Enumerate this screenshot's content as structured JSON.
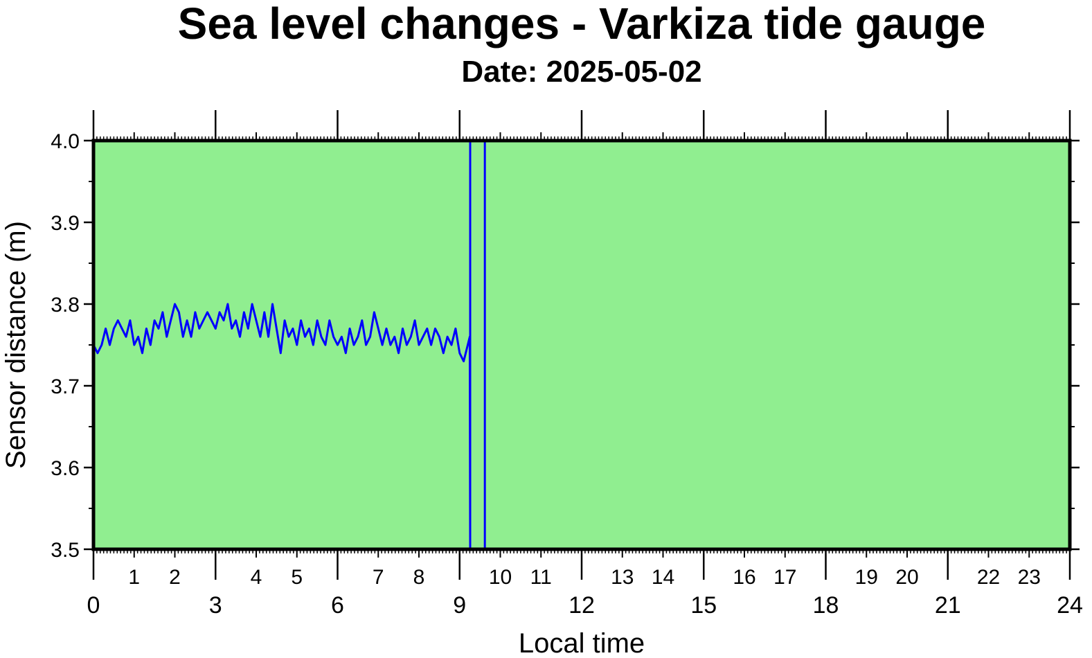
{
  "chart_data": {
    "type": "line",
    "title": "Sea level changes - Varkiza tide gauge",
    "subtitle": "Date: 2025-05-02",
    "xlabel": "Local time",
    "ylabel": "Sensor distance (m)",
    "xlim": [
      0,
      24
    ],
    "ylim": [
      3.5,
      4.0
    ],
    "x_major_ticks": [
      0,
      3,
      6,
      9,
      12,
      15,
      18,
      21,
      24
    ],
    "x_minor_labels": [
      1,
      2,
      4,
      5,
      7,
      8,
      10,
      11,
      13,
      14,
      16,
      17,
      19,
      20,
      22,
      23
    ],
    "y_ticks": [
      "3.5",
      "3.6",
      "3.7",
      "3.8",
      "3.9",
      "4.0"
    ],
    "grid": false,
    "colors": {
      "plot_background": "#90ee90",
      "series": "#0000ff",
      "frame": "#000000"
    },
    "series": [
      {
        "x": [
          0.0,
          0.1,
          0.2,
          0.3,
          0.4,
          0.5,
          0.6,
          0.7,
          0.8,
          0.9,
          1.0,
          1.1,
          1.2,
          1.3,
          1.4,
          1.5,
          1.6,
          1.7,
          1.8,
          1.9,
          2.0,
          2.1,
          2.2,
          2.3,
          2.4,
          2.5,
          2.6,
          2.7,
          2.8,
          2.9,
          3.0,
          3.1,
          3.2,
          3.3,
          3.4,
          3.5,
          3.6,
          3.7,
          3.8,
          3.9,
          4.0,
          4.1,
          4.2,
          4.3,
          4.4,
          4.5,
          4.6,
          4.7,
          4.8,
          4.9,
          5.0,
          5.1,
          5.2,
          5.3,
          5.4,
          5.5,
          5.6,
          5.7,
          5.8,
          5.9,
          6.0,
          6.1,
          6.2,
          6.3,
          6.4,
          6.5,
          6.6,
          6.7,
          6.8,
          6.9,
          7.0,
          7.1,
          7.2,
          7.3,
          7.4,
          7.5,
          7.6,
          7.7,
          7.8,
          7.9,
          8.0,
          8.1,
          8.2,
          8.3,
          8.4,
          8.5,
          8.6,
          8.7,
          8.8,
          8.9,
          9.0,
          9.1,
          9.2,
          9.25,
          9.26,
          9.26,
          9.62,
          9.62
        ],
        "y": [
          3.75,
          3.74,
          3.75,
          3.77,
          3.75,
          3.77,
          3.78,
          3.77,
          3.76,
          3.78,
          3.75,
          3.76,
          3.74,
          3.77,
          3.75,
          3.78,
          3.77,
          3.79,
          3.76,
          3.78,
          3.8,
          3.79,
          3.76,
          3.78,
          3.76,
          3.79,
          3.77,
          3.78,
          3.79,
          3.78,
          3.77,
          3.79,
          3.78,
          3.8,
          3.77,
          3.78,
          3.76,
          3.79,
          3.77,
          3.8,
          3.78,
          3.76,
          3.79,
          3.76,
          3.8,
          3.77,
          3.74,
          3.78,
          3.76,
          3.77,
          3.75,
          3.78,
          3.76,
          3.77,
          3.75,
          3.78,
          3.76,
          3.75,
          3.78,
          3.76,
          3.75,
          3.76,
          3.74,
          3.77,
          3.75,
          3.76,
          3.78,
          3.75,
          3.76,
          3.79,
          3.77,
          3.75,
          3.77,
          3.75,
          3.76,
          3.74,
          3.77,
          3.75,
          3.76,
          3.78,
          3.75,
          3.76,
          3.77,
          3.75,
          3.77,
          3.76,
          3.74,
          3.76,
          3.75,
          3.77,
          3.74,
          3.73,
          3.75,
          3.76,
          3.5,
          4.0,
          4.0,
          3.5
        ]
      }
    ]
  }
}
